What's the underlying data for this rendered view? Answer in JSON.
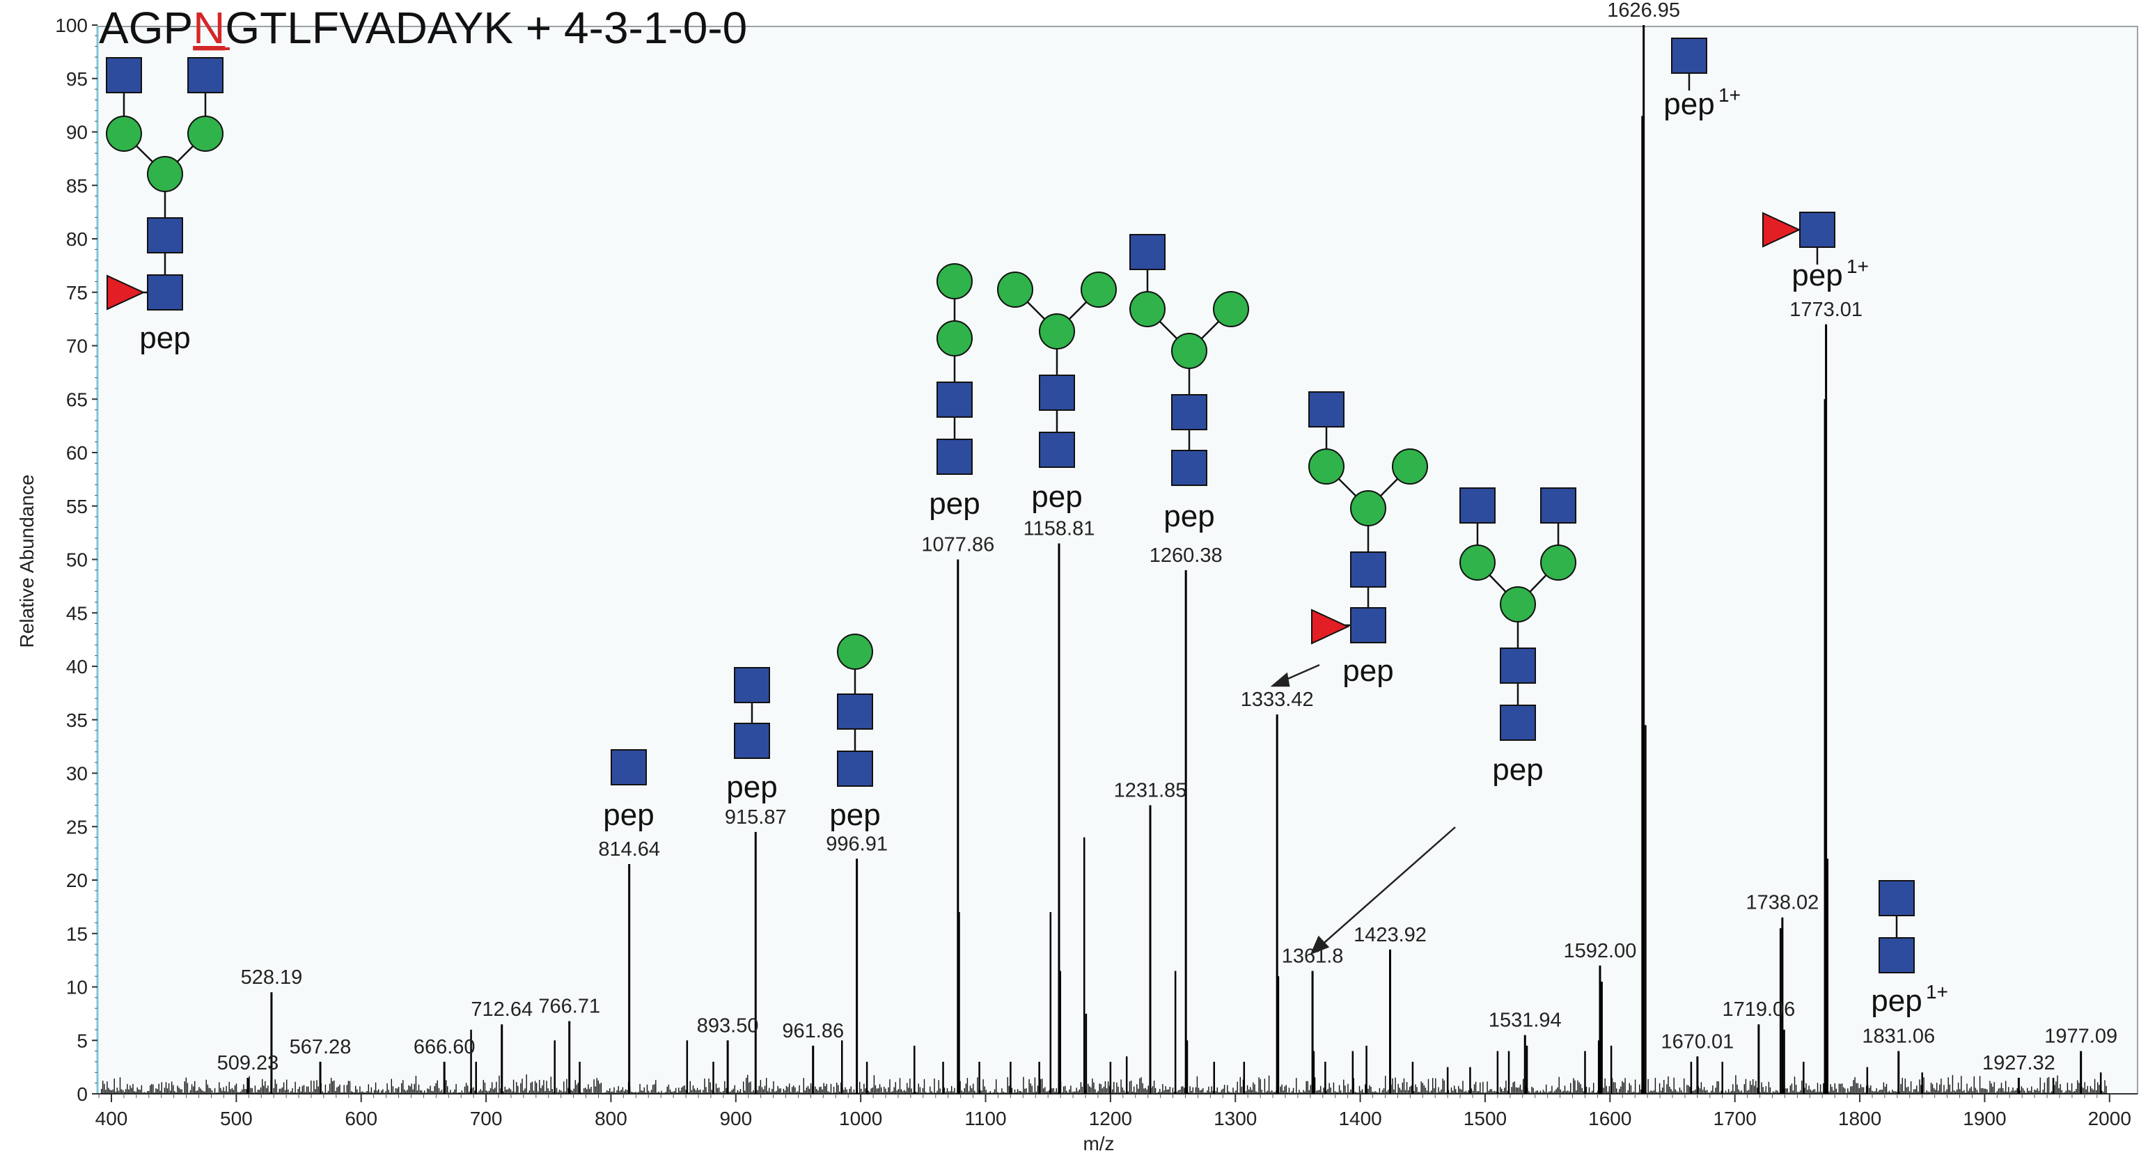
{
  "chart_data": {
    "type": "bar",
    "title": "AGPNGTLFVADAYK + 4-3-1-0-0",
    "title_parts": {
      "pre": "AGP",
      "highlight": "N",
      "post": "GTLFVADAYK + 4-3-1-0-0"
    },
    "xlabel": "m/z",
    "ylabel": "Relative Abundance",
    "xlim": [
      385,
      2000
    ],
    "ylim": [
      0,
      100
    ],
    "x_ticks": [
      400,
      500,
      600,
      700,
      800,
      900,
      1000,
      1100,
      1200,
      1300,
      1400,
      1500,
      1600,
      1700,
      1800,
      1900,
      2000
    ],
    "y_ticks": [
      0,
      5,
      10,
      15,
      20,
      25,
      30,
      35,
      40,
      45,
      50,
      55,
      60,
      65,
      70,
      75,
      80,
      85,
      90,
      95,
      100
    ],
    "grid": false,
    "labeled_peaks": [
      {
        "x": 509.23,
        "y": 1.5,
        "label": "509.23"
      },
      {
        "x": 528.19,
        "y": 9.5,
        "label": "528.19"
      },
      {
        "x": 567.28,
        "y": 3.0,
        "label": "567.28"
      },
      {
        "x": 666.6,
        "y": 3.0,
        "label": "666.60"
      },
      {
        "x": 712.64,
        "y": 6.5,
        "label": "712.64"
      },
      {
        "x": 766.71,
        "y": 6.8,
        "label": "766.71"
      },
      {
        "x": 814.64,
        "y": 21.5,
        "label": "814.64"
      },
      {
        "x": 893.5,
        "y": 5.0,
        "label": "893.50"
      },
      {
        "x": 915.87,
        "y": 24.5,
        "label": "915.87"
      },
      {
        "x": 961.86,
        "y": 4.5,
        "label": "961.86"
      },
      {
        "x": 996.91,
        "y": 22.0,
        "label": "996.91"
      },
      {
        "x": 1077.86,
        "y": 50.0,
        "label": "1077.86"
      },
      {
        "x": 1158.81,
        "y": 51.5,
        "label": "1158.81"
      },
      {
        "x": 1231.85,
        "y": 27.0,
        "label": "1231.85"
      },
      {
        "x": 1260.38,
        "y": 49.0,
        "label": "1260.38"
      },
      {
        "x": 1333.42,
        "y": 35.5,
        "label": "1333.42"
      },
      {
        "x": 1361.8,
        "y": 11.5,
        "label": "1361.8"
      },
      {
        "x": 1423.92,
        "y": 13.5,
        "label": "1423.92"
      },
      {
        "x": 1531.94,
        "y": 5.5,
        "label": "1531.94"
      },
      {
        "x": 1592.0,
        "y": 12.0,
        "label": "1592.00"
      },
      {
        "x": 1626.95,
        "y": 100.0,
        "label": "1626.95"
      },
      {
        "x": 1670.01,
        "y": 3.5,
        "label": "1670.01"
      },
      {
        "x": 1719.06,
        "y": 6.5,
        "label": "1719.06"
      },
      {
        "x": 1738.02,
        "y": 16.5,
        "label": "1738.02"
      },
      {
        "x": 1773.01,
        "y": 72.0,
        "label": "1773.01"
      },
      {
        "x": 1831.06,
        "y": 4.0,
        "label": "1831.06"
      },
      {
        "x": 1927.32,
        "y": 1.5,
        "label": "1927.32"
      },
      {
        "x": 1977.09,
        "y": 4.0,
        "label": "1977.09"
      }
    ],
    "unlabeled_peaks": [
      {
        "x": 1628.5,
        "y": 34.5
      },
      {
        "x": 1625.8,
        "y": 91.5
      },
      {
        "x": 1772.0,
        "y": 65.0
      },
      {
        "x": 1774.2,
        "y": 22.0
      },
      {
        "x": 1078.8,
        "y": 17.0
      },
      {
        "x": 1152.0,
        "y": 17.0
      },
      {
        "x": 1159.8,
        "y": 11.5
      },
      {
        "x": 1179.0,
        "y": 24.0
      },
      {
        "x": 1180.5,
        "y": 7.5
      },
      {
        "x": 1252.0,
        "y": 11.5
      },
      {
        "x": 1261.4,
        "y": 5.0
      },
      {
        "x": 1334.4,
        "y": 11.0
      },
      {
        "x": 1736.5,
        "y": 15.5
      },
      {
        "x": 1739.5,
        "y": 6.0
      },
      {
        "x": 1593.5,
        "y": 10.5
      },
      {
        "x": 1591.0,
        "y": 5.0
      },
      {
        "x": 1533.5,
        "y": 4.5
      },
      {
        "x": 1519.0,
        "y": 4.0
      },
      {
        "x": 1510.0,
        "y": 4.0
      },
      {
        "x": 1580.0,
        "y": 4.0
      },
      {
        "x": 1601.0,
        "y": 4.5
      },
      {
        "x": 1665.0,
        "y": 3.0
      },
      {
        "x": 1690.0,
        "y": 3.0
      },
      {
        "x": 1755.0,
        "y": 3.0
      },
      {
        "x": 1806.0,
        "y": 2.5
      },
      {
        "x": 1850.0,
        "y": 2.0
      },
      {
        "x": 1955.0,
        "y": 1.5
      },
      {
        "x": 1993.0,
        "y": 2.0
      },
      {
        "x": 688.0,
        "y": 6.0
      },
      {
        "x": 692.0,
        "y": 3.0
      },
      {
        "x": 755.0,
        "y": 5.0
      },
      {
        "x": 775.0,
        "y": 3.0
      },
      {
        "x": 861.0,
        "y": 5.0
      },
      {
        "x": 882.0,
        "y": 3.0
      },
      {
        "x": 985.0,
        "y": 5.0
      },
      {
        "x": 1005.0,
        "y": 3.0
      },
      {
        "x": 1043.0,
        "y": 4.5
      },
      {
        "x": 1066.0,
        "y": 3.0
      },
      {
        "x": 1095.0,
        "y": 3.0
      },
      {
        "x": 1120.0,
        "y": 3.0
      },
      {
        "x": 1143.0,
        "y": 3.0
      },
      {
        "x": 1200.0,
        "y": 3.0
      },
      {
        "x": 1213.0,
        "y": 3.5
      },
      {
        "x": 1283.0,
        "y": 3.0
      },
      {
        "x": 1307.0,
        "y": 3.0
      },
      {
        "x": 1362.8,
        "y": 4.0
      },
      {
        "x": 1372.0,
        "y": 3.0
      },
      {
        "x": 1394.0,
        "y": 4.0
      },
      {
        "x": 1405.0,
        "y": 4.5
      },
      {
        "x": 1442.0,
        "y": 3.0
      },
      {
        "x": 1470.0,
        "y": 2.5
      },
      {
        "x": 1488.0,
        "y": 2.5
      }
    ]
  },
  "glycan_labels": {
    "pep": "pep",
    "charge": "1+"
  },
  "colors": {
    "spectrum": "#000000",
    "title_highlight": "#d42727",
    "hexnac_square": "#2e4c9e",
    "hexose_circle": "#2fb34a",
    "fucose_triangle": "#e31e24",
    "frame_background": "#f7fafb"
  }
}
